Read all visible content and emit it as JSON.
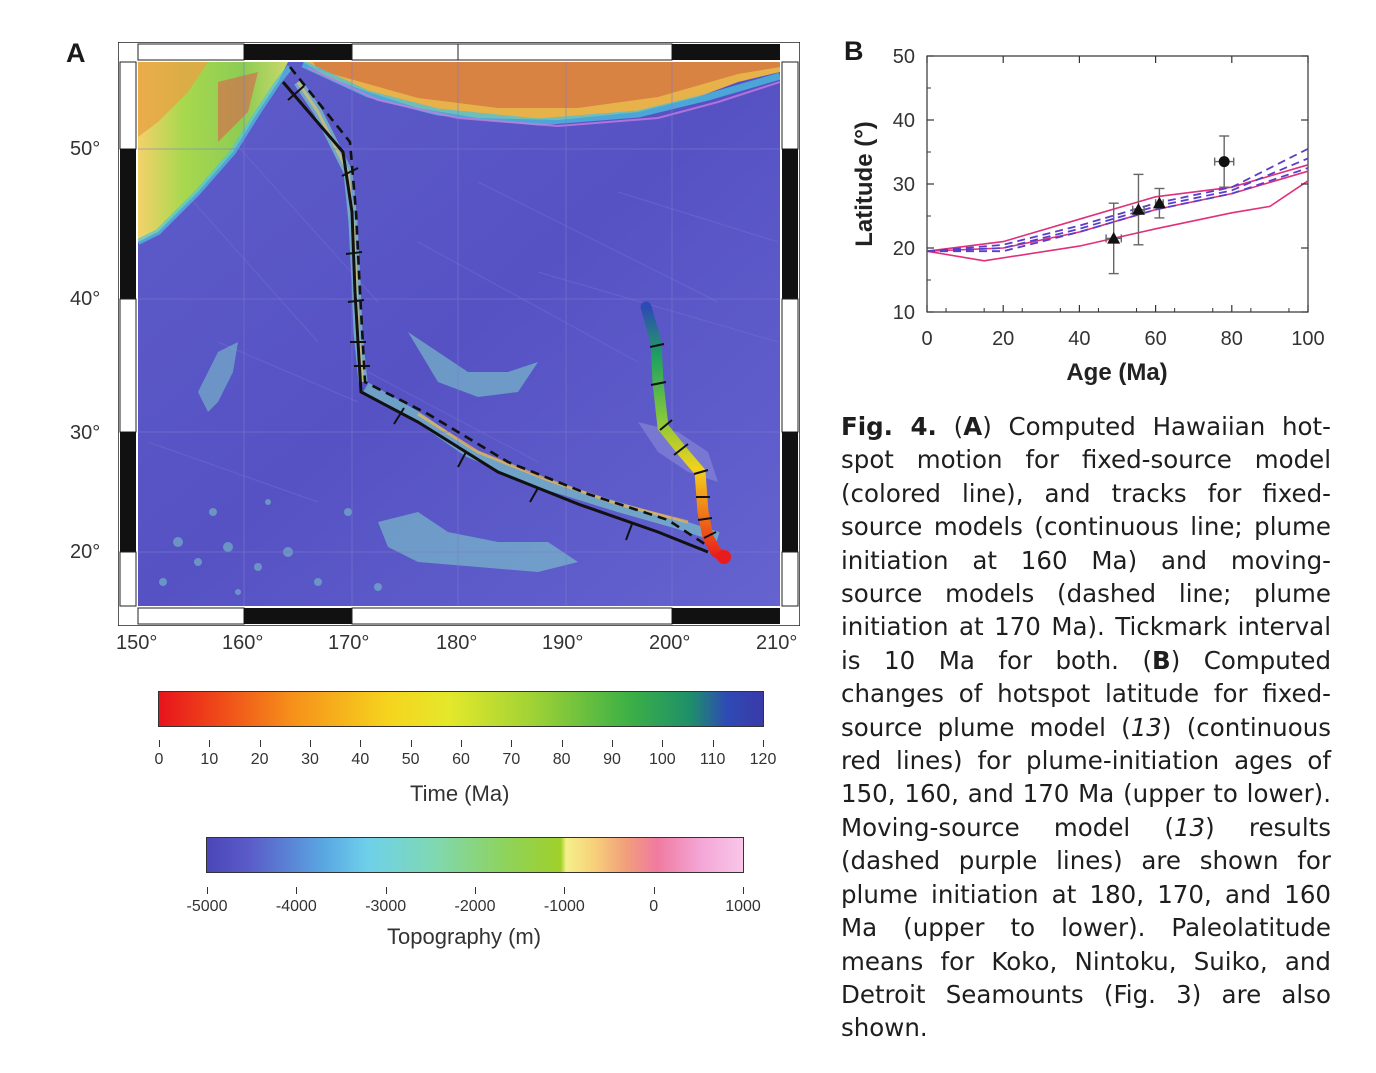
{
  "panelA": {
    "letter": "A",
    "lat_labels": [
      "50°",
      "40°",
      "30°",
      "20°"
    ],
    "lon_labels": [
      "150°",
      "160°",
      "170°",
      "180°",
      "190°",
      "200°",
      "210°"
    ],
    "time_colorbar": {
      "ticks": [
        "0",
        "10",
        "20",
        "30",
        "40",
        "50",
        "60",
        "70",
        "80",
        "90",
        "100",
        "110",
        "120"
      ],
      "title": "Time (Ma)"
    },
    "topo_colorbar": {
      "ticks": [
        "-5000",
        "-4000",
        "-3000",
        "-2000",
        "-1000",
        "0",
        "1000"
      ],
      "title": "Topography (m)"
    }
  },
  "panelB": {
    "letter": "B",
    "ylabel": "Latitude (°)",
    "xlabel": "Age (Ma)",
    "y_ticks": [
      "10",
      "20",
      "30",
      "40",
      "50"
    ],
    "x_ticks": [
      "0",
      "20",
      "40",
      "60",
      "80",
      "100"
    ]
  },
  "chart_data": {
    "type": "line",
    "xlabel": "Age (Ma)",
    "ylabel": "Latitude (°)",
    "xlim": [
      0,
      100
    ],
    "ylim": [
      10,
      50
    ],
    "grid": false,
    "colors": {
      "fixed_source": "#e0307a",
      "moving_source": "#5a3ec8",
      "points": "#111111"
    },
    "series": [
      {
        "style": "solid",
        "x": [
          0,
          15,
          40,
          60,
          80,
          90,
          100
        ],
        "y": [
          19.5,
          18,
          20.3,
          23,
          25.5,
          26.5,
          30.5
        ]
      },
      {
        "style": "solid",
        "x": [
          0,
          20,
          40,
          60,
          80,
          100
        ],
        "y": [
          19.5,
          20,
          22.5,
          26,
          28.5,
          32
        ]
      },
      {
        "style": "solid",
        "x": [
          0,
          20,
          40,
          60,
          80,
          100
        ],
        "y": [
          19.5,
          21,
          24.5,
          28,
          29.5,
          33
        ]
      },
      {
        "style": "dashed",
        "x": [
          0,
          20,
          40,
          60,
          80,
          100
        ],
        "y": [
          19.5,
          20.5,
          23.5,
          27,
          29.5,
          35.5
        ]
      },
      {
        "style": "dashed",
        "x": [
          0,
          20,
          40,
          60,
          80,
          100
        ],
        "y": [
          19.5,
          20,
          23,
          26.5,
          29,
          34
        ]
      },
      {
        "style": "dashed",
        "x": [
          0,
          20,
          40,
          60,
          80,
          100
        ],
        "y": [
          19.5,
          19.5,
          22.5,
          26,
          28.5,
          32.5
        ]
      }
    ],
    "points": [
      {
        "marker": "triangle",
        "x": 49,
        "y": 21.5,
        "xerr": 2,
        "yerr": 5.5
      },
      {
        "marker": "triangle",
        "x": 55.5,
        "y": 26,
        "xerr": 1.5,
        "yerr": 5.5
      },
      {
        "marker": "triangle",
        "x": 61,
        "y": 27,
        "xerr": 1,
        "yerr": 2.3
      },
      {
        "marker": "circle",
        "x": 78,
        "y": 33.5,
        "xerr": 2.5,
        "yerr": 4
      }
    ]
  },
  "caption": {
    "lead": "Fig. 4.",
    "parts": [
      " (",
      "A",
      ") Computed Hawaiian hot-spot motion for fixed-source model (colored line), and tracks for fixed-source models (continuous line; plume initiation at 160 Ma) and moving-source models (dashed line; plume initiation at 170 Ma). Tickmark interval is 10 Ma for both. (",
      "B",
      ") Computed changes of hotspot latitude for fixed-source plume model (",
      "13",
      ") (continuous red lines) for plume-initiation ages of 150, 160, and 170 Ma (upper to lower). Moving-source model (",
      "13",
      ") results (dashed purple lines) are shown for plume initiation at 180, 170, and 160 Ma (upper to lower). Paleolatitude means for Koko, Nintoku, Suiko, and Detroit Seamounts (Fig. 3) are also shown."
    ]
  }
}
